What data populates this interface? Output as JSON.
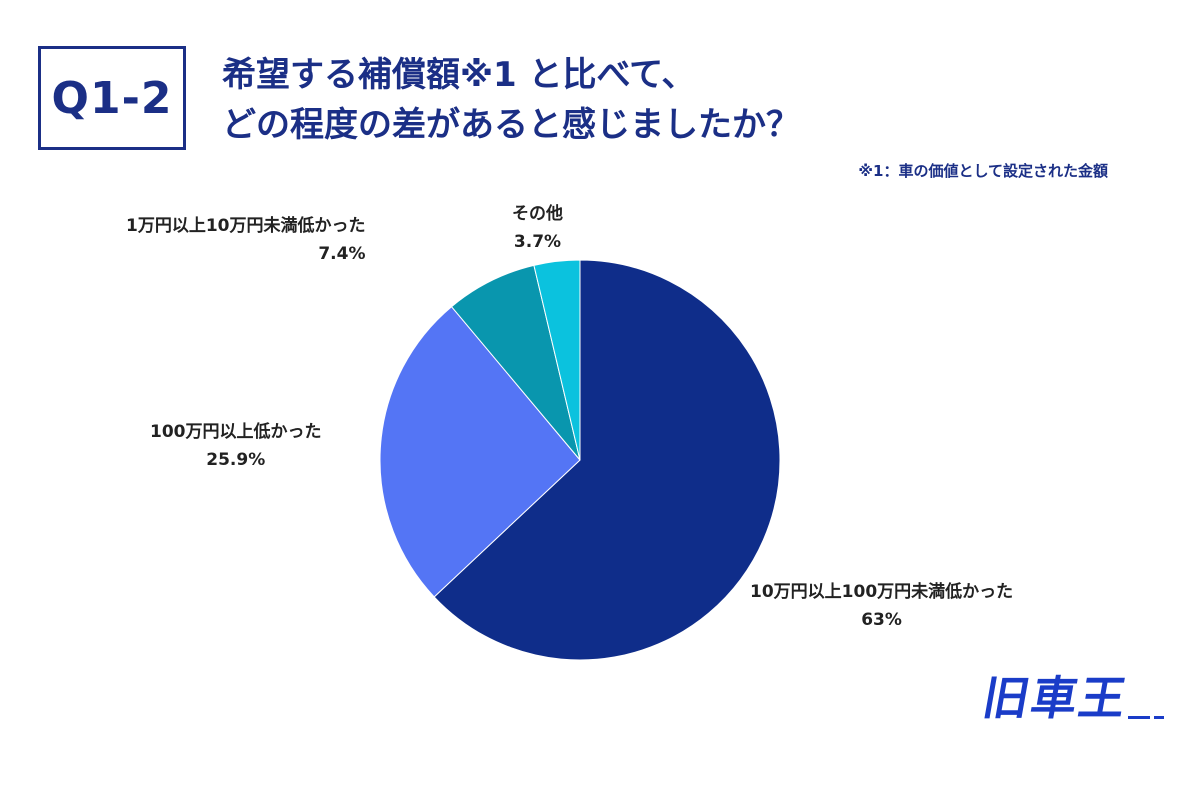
{
  "question": {
    "badge": "Q1-2",
    "title_line1": "希望する補償額※1 と比べて、",
    "title_line2": "どの程度の差があると感じましたか？",
    "footnote": "※1：車の価値として設定された金額"
  },
  "chart_data": {
    "type": "pie",
    "start_angle_deg": 0,
    "direction": "clockwise",
    "slices": [
      {
        "label": "10万円以上100万円未満低かった",
        "value": 63,
        "value_label": "63%",
        "color": "#0f2d8a"
      },
      {
        "label": "100万円以上低かった",
        "value": 25.9,
        "value_label": "25.9%",
        "color": "#5475f5"
      },
      {
        "label": "1万円以上10万円未満低かった",
        "value": 7.4,
        "value_label": "7.4%",
        "color": "#0996ae"
      },
      {
        "label": "その他",
        "value": 3.7,
        "value_label": "3.7%",
        "color": "#0bc2de"
      }
    ]
  },
  "logo": {
    "text": "旧車王",
    "color": "#1a3cc8"
  }
}
